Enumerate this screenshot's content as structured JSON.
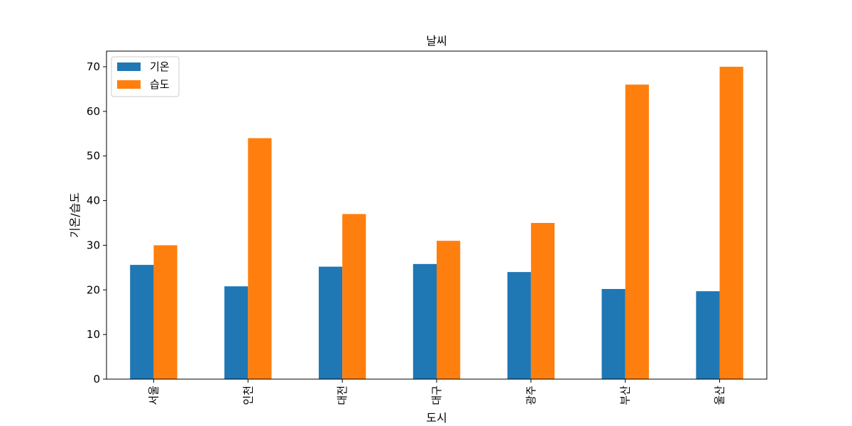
{
  "chart_data": {
    "type": "bar",
    "title": "날씨",
    "xlabel": "도시",
    "ylabel": "기온/습도",
    "categories": [
      "서울",
      "인천",
      "대전",
      "대구",
      "광주",
      "부산",
      "울산"
    ],
    "series": [
      {
        "name": "기온",
        "color": "#1f77b4",
        "values": [
          25.6,
          20.8,
          25.2,
          25.8,
          24.0,
          20.2,
          19.7
        ]
      },
      {
        "name": "습도",
        "color": "#ff7f0e",
        "values": [
          30,
          54,
          37,
          31,
          35,
          66,
          70
        ]
      }
    ],
    "ylim": [
      0,
      73.5
    ],
    "yticks": [
      0,
      10,
      20,
      30,
      40,
      50,
      60,
      70
    ],
    "grid": false,
    "legend_position": "top-left"
  }
}
